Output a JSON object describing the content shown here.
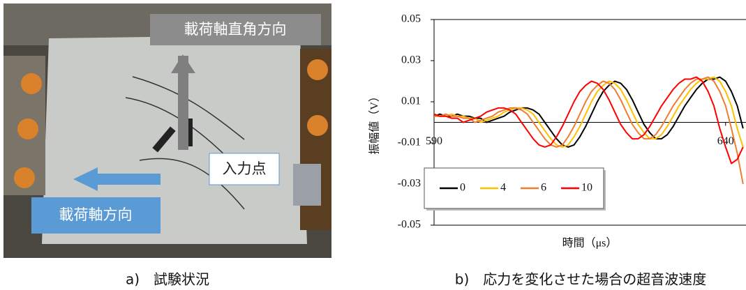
{
  "photo": {
    "labels": [
      "載荷軸直角方向",
      "入力点",
      "載荷軸方向"
    ]
  },
  "captions": [
    "a)　試験状況",
    "b)　応力を変化させた場合の超音波速度"
  ],
  "chart_data": {
    "type": "line",
    "x_label": "時間（μs）",
    "y_label": "振幅値（V）",
    "xlim": [
      590,
      643.5
    ],
    "xticks": [
      590,
      640
    ],
    "ylim": [
      -0.05,
      0.05
    ],
    "yticks": [
      0.05,
      0.03,
      0.01,
      -0.01,
      -0.03,
      -0.05
    ],
    "legend": "lower left",
    "x": [
      590,
      591,
      592,
      593,
      594,
      595,
      596,
      597,
      598,
      599,
      600,
      601,
      602,
      603,
      604,
      605,
      606,
      607,
      608,
      609,
      610,
      611,
      612,
      613,
      614,
      615,
      616,
      617,
      618,
      619,
      620,
      621,
      622,
      623,
      624,
      625,
      626,
      627,
      628,
      629,
      630,
      631,
      632,
      633,
      634,
      635,
      636,
      637,
      638,
      639,
      640,
      641,
      642,
      643
    ],
    "series": [
      {
        "name": "0",
        "color": "#000000",
        "values": [
          0.003,
          0.004,
          0.003,
          0.003,
          0.004,
          0.003,
          0.003,
          0.002,
          0.002,
          0.0,
          0.001,
          0.002,
          0.003,
          0.005,
          0.006,
          0.007,
          0.007,
          0.006,
          0.004,
          0.0,
          -0.004,
          -0.008,
          -0.011,
          -0.012,
          -0.011,
          -0.007,
          -0.002,
          0.004,
          0.01,
          0.015,
          0.018,
          0.02,
          0.019,
          0.016,
          0.011,
          0.005,
          -0.001,
          -0.005,
          -0.008,
          -0.008,
          -0.006,
          -0.002,
          0.003,
          0.008,
          0.012,
          0.016,
          0.019,
          0.021,
          0.021,
          0.022,
          0.02,
          0.015,
          0.008,
          -0.003
        ]
      },
      {
        "name": "4",
        "color": "#ffc000",
        "values": [
          0.004,
          0.003,
          0.003,
          0.004,
          0.003,
          0.003,
          0.002,
          0.002,
          0.0,
          0.001,
          0.002,
          0.003,
          0.005,
          0.006,
          0.007,
          0.007,
          0.006,
          0.004,
          0.0,
          -0.004,
          -0.008,
          -0.011,
          -0.012,
          -0.011,
          -0.007,
          -0.002,
          0.004,
          0.01,
          0.015,
          0.018,
          0.02,
          0.019,
          0.016,
          0.011,
          0.005,
          -0.001,
          -0.005,
          -0.008,
          -0.008,
          -0.006,
          -0.002,
          0.003,
          0.008,
          0.012,
          0.016,
          0.019,
          0.021,
          0.021,
          0.022,
          0.02,
          0.015,
          0.008,
          -0.003,
          -0.012
        ]
      },
      {
        "name": "6",
        "color": "#ed7d31",
        "values": [
          0.003,
          0.003,
          0.004,
          0.003,
          0.003,
          0.002,
          0.002,
          0.0,
          0.001,
          0.002,
          0.003,
          0.005,
          0.006,
          0.007,
          0.007,
          0.006,
          0.004,
          0.0,
          -0.004,
          -0.008,
          -0.011,
          -0.012,
          -0.011,
          -0.007,
          -0.002,
          0.004,
          0.01,
          0.015,
          0.018,
          0.02,
          0.019,
          0.016,
          0.011,
          0.005,
          -0.001,
          -0.005,
          -0.008,
          -0.008,
          -0.006,
          -0.002,
          0.003,
          0.008,
          0.012,
          0.016,
          0.019,
          0.021,
          0.021,
          0.022,
          0.02,
          0.015,
          0.008,
          -0.003,
          -0.015,
          -0.03
        ]
      },
      {
        "name": "10",
        "color": "#ff0000",
        "values": [
          0.004,
          0.003,
          0.003,
          0.002,
          0.002,
          0.0,
          0.001,
          0.002,
          0.003,
          0.005,
          0.006,
          0.007,
          0.007,
          0.006,
          0.004,
          0.0,
          -0.004,
          -0.008,
          -0.011,
          -0.012,
          -0.011,
          -0.007,
          -0.002,
          0.004,
          0.01,
          0.015,
          0.018,
          0.02,
          0.019,
          0.016,
          0.011,
          0.005,
          -0.001,
          -0.005,
          -0.008,
          -0.008,
          -0.006,
          -0.002,
          0.003,
          0.008,
          0.012,
          0.016,
          0.019,
          0.021,
          0.021,
          0.022,
          0.02,
          0.015,
          0.008,
          -0.003,
          -0.012,
          -0.02,
          -0.018,
          -0.012
        ]
      }
    ]
  }
}
